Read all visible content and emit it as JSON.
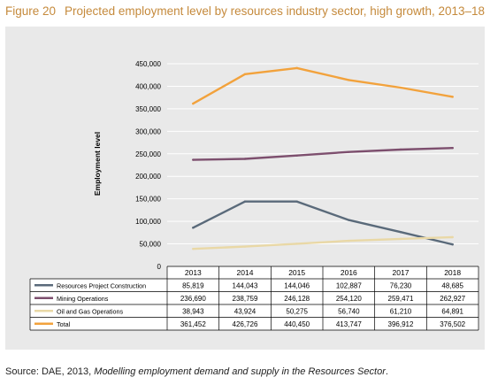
{
  "figure": {
    "number": "Figure 20",
    "title": "Projected employment level by resources industry sector, high growth, 2013–18"
  },
  "source": {
    "prefix": "Source: DAE, 2013, ",
    "publication": "Modelling employment demand and supply in the Resources Sector",
    "suffix": "."
  },
  "chart_data": {
    "type": "line",
    "title": "Projected employment level by resources industry sector, high growth, 2013–18",
    "ylabel": "Employment level",
    "xlabel": "",
    "ylim": [
      0,
      450000
    ],
    "yticks": [
      0,
      50000,
      100000,
      150000,
      200000,
      250000,
      300000,
      350000,
      400000,
      450000
    ],
    "ytick_labels": [
      "0",
      "50,000",
      "100,000",
      "150,000",
      "200,000",
      "250,000",
      "300,000",
      "350,000",
      "400,000",
      "450,000"
    ],
    "categories": [
      "2013",
      "2014",
      "2015",
      "2016",
      "2017",
      "2018"
    ],
    "grid": "horizontal",
    "legend": "table below chart",
    "series": [
      {
        "name": "Resources Project Construction",
        "color": "#5a6a7a",
        "values": [
          85819,
          144043,
          144046,
          102887,
          76230,
          48685
        ],
        "labels": [
          "85,819",
          "144,043",
          "144,046",
          "102,887",
          "76,230",
          "48,685"
        ]
      },
      {
        "name": "Mining Operations",
        "color": "#7d4f6e",
        "values": [
          236690,
          238759,
          246128,
          254120,
          259471,
          262927
        ],
        "labels": [
          "236,690",
          "238,759",
          "246,128",
          "254,120",
          "259,471",
          "262,927"
        ]
      },
      {
        "name": "Oil and Gas Operations",
        "color": "#e9d8a6",
        "values": [
          38943,
          43924,
          50275,
          56740,
          61210,
          64891
        ],
        "labels": [
          "38,943",
          "43,924",
          "50,275",
          "56,740",
          "61,210",
          "64,891"
        ]
      },
      {
        "name": "Total",
        "color": "#f2a23c",
        "values": [
          361452,
          426726,
          440450,
          413747,
          396912,
          376502
        ],
        "labels": [
          "361,452",
          "426,726",
          "440,450",
          "413,747",
          "396,912",
          "376,502"
        ]
      }
    ]
  }
}
